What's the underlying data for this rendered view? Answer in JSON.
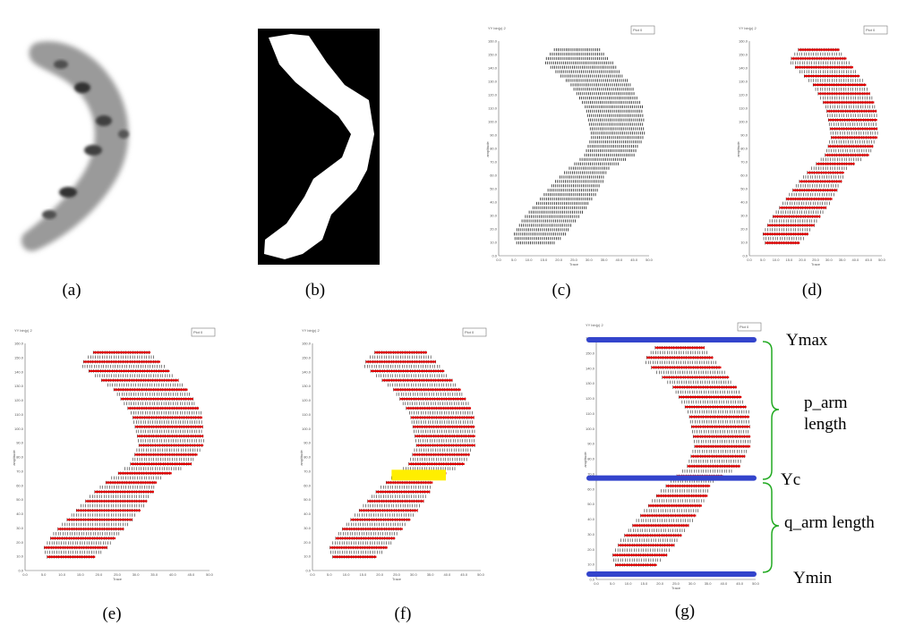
{
  "panels": [
    {
      "id": "a",
      "label": "(a)"
    },
    {
      "id": "b",
      "label": "(b)"
    },
    {
      "id": "c",
      "label": "(c)"
    },
    {
      "id": "d",
      "label": "(d)"
    },
    {
      "id": "e",
      "label": "(e)"
    },
    {
      "id": "f",
      "label": "(f)"
    },
    {
      "id": "g",
      "label": "(g)"
    }
  ],
  "plot_text": {
    "window_title": "YY bin(y) 2",
    "legend": "Plot 0",
    "xlabel": "Trace",
    "ylabel": "amplitude",
    "y_ticks": [
      "0.0",
      "10.0",
      "20.0",
      "30.0",
      "40.0",
      "50.0",
      "60.0",
      "70.0",
      "80.0",
      "90.0",
      "100.0",
      "110.0",
      "120.0",
      "130.0",
      "140.0",
      "150.0",
      "160.0"
    ],
    "x_ticks": [
      "0.0",
      "5.0",
      "10.0",
      "15.0",
      "20.0",
      "25.0",
      "30.0",
      "35.0",
      "40.0",
      "45.0",
      "50.0"
    ]
  },
  "annotations": {
    "ymax": "Ymax",
    "p_arm_line1": "p_arm",
    "p_arm_line2": "length",
    "yc": "Yc",
    "q_arm": "q_arm length",
    "ymin": "Ymin"
  },
  "colors": {
    "scan_line": "#e00000",
    "pixel": "#222222",
    "centromere_band": "#ffee00",
    "boundary_line": "#3344cc",
    "brace": "#22aa22"
  }
}
